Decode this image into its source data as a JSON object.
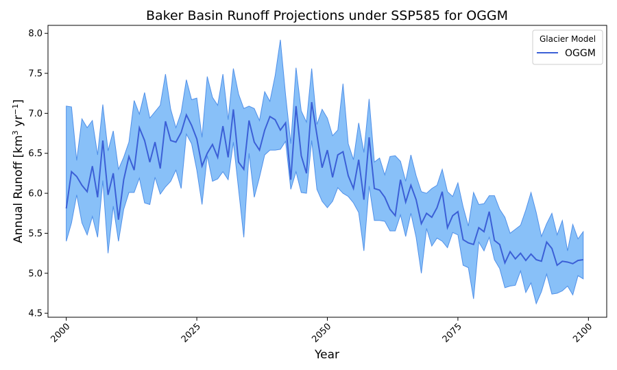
{
  "chart_data": {
    "type": "line",
    "title": "Baker Basin Runoff Projections under SSP585 for OGGM",
    "xlabel": "Year",
    "ylabel": "Annual Runoff [km",
    "ylabel_sup1": "3",
    "ylabel_mid": " yr",
    "ylabel_sup2": "−1",
    "ylabel_end": "]",
    "xlim": [
      1996.5,
      2103.5
    ],
    "ylim": [
      4.45,
      8.1
    ],
    "x_ticks": [
      2000,
      2025,
      2050,
      2075,
      2100
    ],
    "x_tick_labels": [
      "2000",
      "2025",
      "2050",
      "2075",
      "2100"
    ],
    "y_ticks": [
      4.5,
      5.0,
      5.5,
      6.0,
      6.5,
      7.0,
      7.5,
      8.0
    ],
    "y_tick_labels": [
      "4.5",
      "5.0",
      "5.5",
      "6.0",
      "6.5",
      "7.0",
      "7.5",
      "8.0"
    ],
    "grid": false,
    "legend": {
      "title": "Glacier Model",
      "position": "top-right",
      "entries": [
        "OGGM"
      ]
    },
    "colors": {
      "line": "#3b5fd6",
      "band": "#88c0f8",
      "band_edge": "#4f8fe8"
    },
    "x": [
      2000,
      2001,
      2002,
      2003,
      2004,
      2005,
      2006,
      2007,
      2008,
      2009,
      2010,
      2011,
      2012,
      2013,
      2014,
      2015,
      2016,
      2017,
      2018,
      2019,
      2020,
      2021,
      2022,
      2023,
      2024,
      2025,
      2026,
      2027,
      2028,
      2029,
      2030,
      2031,
      2032,
      2033,
      2034,
      2035,
      2036,
      2037,
      2038,
      2039,
      2040,
      2041,
      2042,
      2043,
      2044,
      2045,
      2046,
      2047,
      2048,
      2049,
      2050,
      2051,
      2052,
      2053,
      2054,
      2055,
      2056,
      2057,
      2058,
      2059,
      2060,
      2061,
      2062,
      2063,
      2064,
      2065,
      2066,
      2067,
      2068,
      2069,
      2070,
      2071,
      2072,
      2073,
      2074,
      2075,
      2076,
      2077,
      2078,
      2079,
      2080,
      2081,
      2082,
      2083,
      2084,
      2085,
      2086,
      2087,
      2088,
      2089,
      2090,
      2091,
      2092,
      2093,
      2094,
      2095,
      2096,
      2097,
      2098,
      2099
    ],
    "series": [
      {
        "name": "OGGM",
        "mean": [
          5.81,
          6.27,
          6.21,
          6.1,
          6.02,
          6.34,
          5.95,
          6.66,
          5.98,
          6.25,
          5.67,
          6.17,
          6.46,
          6.29,
          6.82,
          6.66,
          6.39,
          6.64,
          6.31,
          6.9,
          6.66,
          6.64,
          6.76,
          6.98,
          6.85,
          6.68,
          6.34,
          6.5,
          6.61,
          6.45,
          6.84,
          6.45,
          7.05,
          6.39,
          6.3,
          6.91,
          6.64,
          6.54,
          6.79,
          6.96,
          6.92,
          6.79,
          6.88,
          6.17,
          7.09,
          6.47,
          6.25,
          7.14,
          6.73,
          6.32,
          6.54,
          6.2,
          6.48,
          6.52,
          6.22,
          6.06,
          6.42,
          5.92,
          6.7,
          6.06,
          6.04,
          5.95,
          5.8,
          5.72,
          6.17,
          5.89,
          6.1,
          5.92,
          5.62,
          5.75,
          5.7,
          5.82,
          6.02,
          5.57,
          5.72,
          5.77,
          5.42,
          5.38,
          5.36,
          5.57,
          5.52,
          5.77,
          5.41,
          5.36,
          5.13,
          5.27,
          5.18,
          5.25,
          5.16,
          5.24,
          5.17,
          5.15,
          5.39,
          5.31,
          5.1,
          5.15,
          5.14,
          5.12,
          5.16,
          5.17
        ],
        "upper": [
          7.09,
          7.08,
          6.41,
          6.93,
          6.82,
          6.91,
          6.48,
          7.11,
          6.53,
          6.78,
          6.3,
          6.45,
          6.64,
          7.16,
          6.99,
          7.26,
          6.94,
          7.02,
          7.1,
          7.49,
          7.05,
          6.82,
          7.01,
          7.42,
          7.17,
          7.19,
          6.7,
          7.46,
          7.2,
          7.1,
          7.49,
          6.92,
          7.56,
          7.24,
          7.06,
          7.09,
          7.06,
          6.91,
          7.27,
          7.15,
          7.47,
          7.92,
          7.23,
          6.62,
          7.57,
          7.03,
          6.89,
          7.56,
          6.86,
          7.05,
          6.94,
          6.72,
          6.79,
          7.37,
          6.62,
          6.42,
          6.88,
          6.51,
          7.18,
          6.39,
          6.44,
          6.23,
          6.46,
          6.47,
          6.4,
          6.15,
          6.48,
          6.22,
          6.02,
          6.0,
          6.06,
          6.1,
          6.3,
          6.02,
          5.96,
          6.13,
          5.83,
          5.59,
          6.01,
          5.86,
          5.87,
          5.97,
          5.97,
          5.8,
          5.7,
          5.5,
          5.55,
          5.6,
          5.79,
          6.01,
          5.76,
          5.46,
          5.62,
          5.75,
          5.48,
          5.66,
          5.28,
          5.61,
          5.43,
          5.52
        ],
        "lower": [
          5.4,
          5.63,
          5.98,
          5.63,
          5.48,
          5.71,
          5.45,
          6.16,
          5.25,
          5.84,
          5.4,
          5.8,
          6.01,
          6.01,
          6.19,
          5.88,
          5.86,
          6.2,
          5.99,
          6.08,
          6.15,
          6.29,
          6.06,
          6.74,
          6.62,
          6.29,
          5.86,
          6.47,
          6.15,
          6.18,
          6.27,
          6.17,
          6.64,
          6.05,
          5.45,
          6.5,
          5.95,
          6.2,
          6.48,
          6.54,
          6.54,
          6.55,
          6.65,
          6.05,
          6.27,
          6.01,
          6.0,
          6.66,
          6.05,
          5.9,
          5.82,
          5.9,
          6.07,
          6.0,
          5.96,
          5.88,
          5.76,
          5.28,
          6.09,
          5.66,
          5.66,
          5.65,
          5.53,
          5.53,
          5.73,
          5.46,
          5.75,
          5.45,
          5.0,
          5.56,
          5.34,
          5.44,
          5.4,
          5.32,
          5.51,
          5.48,
          5.1,
          5.07,
          4.68,
          5.39,
          5.28,
          5.45,
          5.17,
          5.06,
          4.82,
          4.84,
          4.85,
          5.03,
          4.76,
          4.88,
          4.62,
          4.77,
          4.99,
          4.74,
          4.75,
          4.78,
          4.84,
          4.73,
          4.97,
          4.93
        ]
      }
    ]
  }
}
